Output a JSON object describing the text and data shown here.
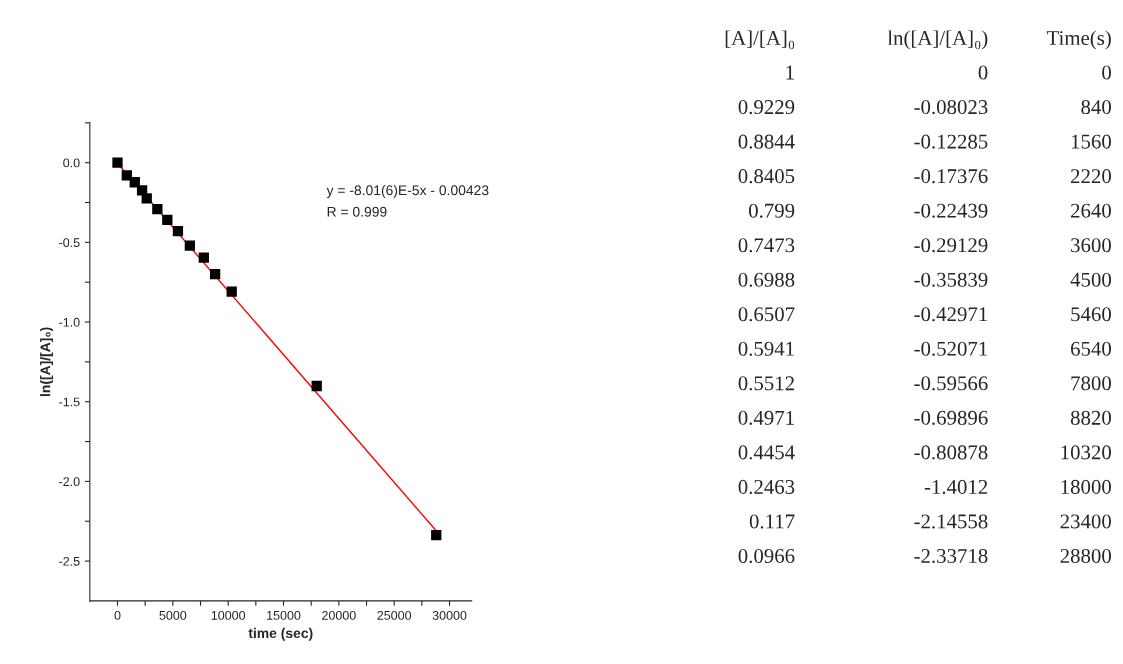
{
  "chart_data": [
    {
      "type": "scatter",
      "xlabel": "time (sec)",
      "ylabel": "ln([A]/[A]₀)",
      "x": [
        0,
        840,
        1560,
        2220,
        2640,
        3600,
        4500,
        5460,
        6540,
        7800,
        8820,
        10320,
        18000,
        28800
      ],
      "series": [
        {
          "type": "scatter",
          "color": "#000000",
          "marker": "square",
          "values": [
            0,
            -0.08023,
            -0.12285,
            -0.17376,
            -0.22439,
            -0.29129,
            -0.35839,
            -0.42971,
            -0.52071,
            -0.59566,
            -0.69896,
            -0.80878,
            -1.4012,
            -2.33718
          ]
        },
        {
          "type": "line",
          "color": "#ff0000",
          "line_style": "solid",
          "x": [
            0,
            28800
          ],
          "values": [
            -0.004,
            -2.31
          ]
        }
      ],
      "xlim": [
        -2500,
        32000
      ],
      "xticks": [
        0,
        {
          "value": 2500,
          "label": null
        },
        5000,
        {
          "value": 7500,
          "label": null
        },
        10000,
        {
          "value": 12500,
          "label": null
        },
        15000,
        {
          "value": 17500,
          "label": null
        },
        20000,
        {
          "value": 22500,
          "label": null
        },
        25000,
        {
          "value": 27500,
          "label": null
        },
        30000
      ],
      "ylim": [
        -2.75,
        0.25
      ],
      "yticks": [
        -2.5,
        {
          "value": -2.25,
          "label": null
        },
        {
          "value": -2,
          "label": "-2.0"
        },
        {
          "value": -1.75,
          "label": null
        },
        -1.5,
        {
          "value": -1.25,
          "label": null
        },
        {
          "value": -1,
          "label": "-1.0"
        },
        {
          "value": -0.75,
          "label": null
        },
        -0.5,
        {
          "value": -0.25,
          "label": null
        },
        {
          "value": 0,
          "label": "0.0"
        },
        {
          "value": 0.25,
          "label": null
        }
      ],
      "grid": false,
      "legend": false,
      "annotations": [
        "y = -8.01(6)E-5x - 0.00423",
        "R = 0.999"
      ]
    },
    {
      "type": "other",
      "categories": [
        "[A]/[A]₀",
        "ln([A]/[A]₀)",
        "Time(s)"
      ],
      "cell_labels": [
        [
          "1",
          "0",
          "0"
        ],
        [
          "0.9229",
          "-0.08023",
          "840"
        ],
        [
          "0.8844",
          "-0.12285",
          "1560"
        ],
        [
          "0.8405",
          "-0.17376",
          "2220"
        ],
        [
          "0.799",
          "-0.22439",
          "2640"
        ],
        [
          "0.7473",
          "-0.29129",
          "3600"
        ],
        [
          "0.6988",
          "-0.35839",
          "4500"
        ],
        [
          "0.6507",
          "-0.42971",
          "5460"
        ],
        [
          "0.5941",
          "-0.52071",
          "6540"
        ],
        [
          "0.5512",
          "-0.59566",
          "7800"
        ],
        [
          "0.4971",
          "-0.69896",
          "8820"
        ],
        [
          "0.4454",
          "-0.80878",
          "10320"
        ],
        [
          "0.2463",
          "-1.4012",
          "18000"
        ],
        [
          "0.117",
          "-2.14558",
          "23400"
        ],
        [
          "0.0966",
          "-2.33718",
          "28800"
        ]
      ]
    }
  ]
}
